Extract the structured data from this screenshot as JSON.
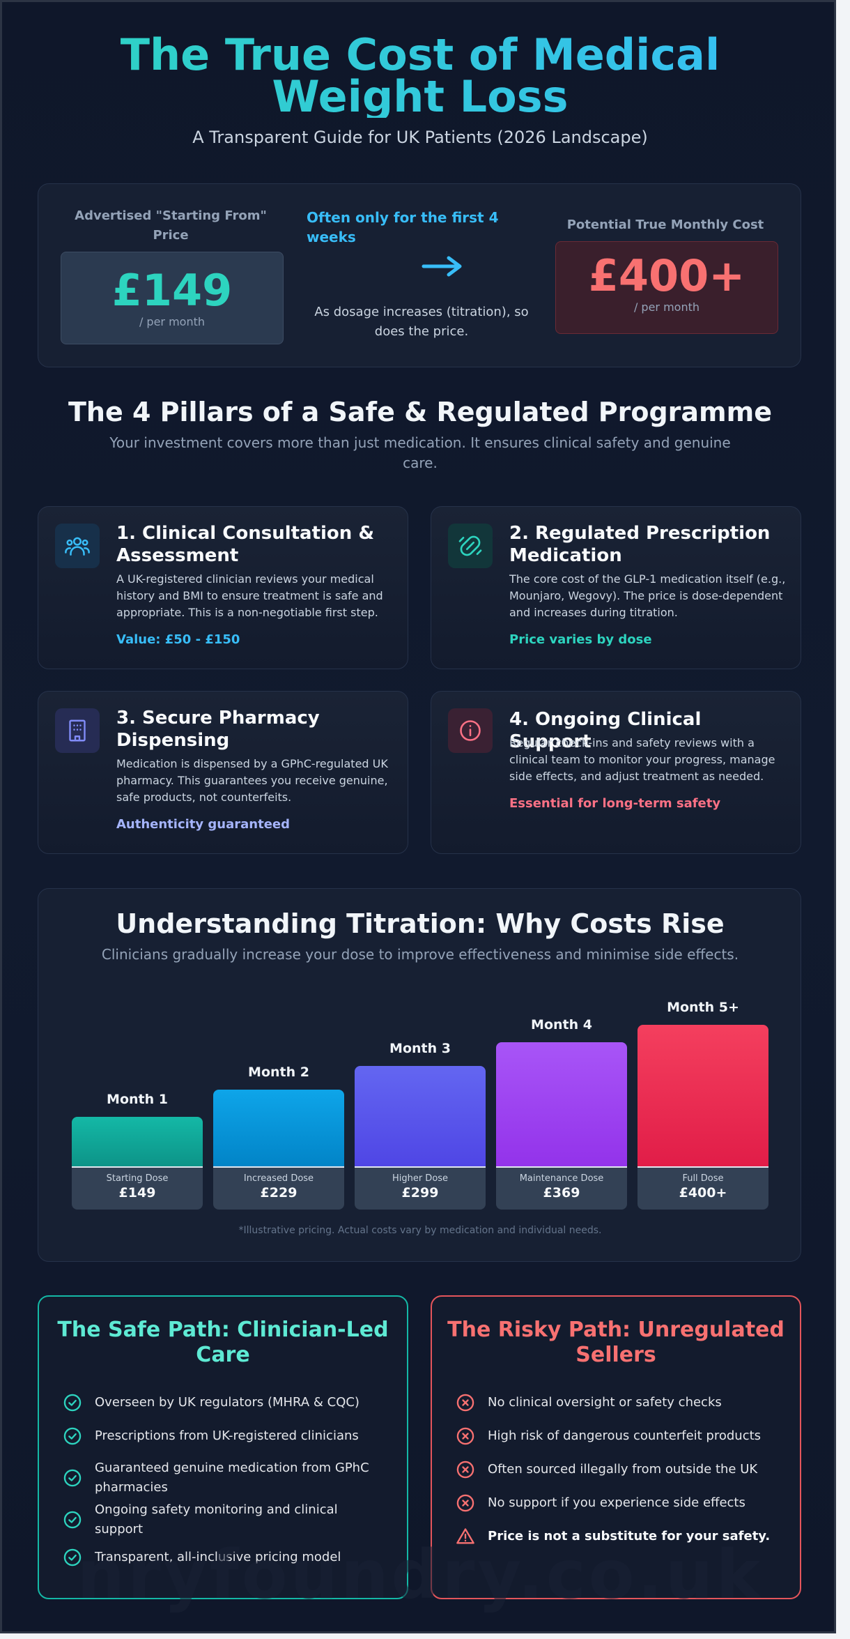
{
  "header": {
    "title": "The True Cost of Medical Weight Loss",
    "subtitle": "A Transparent Guide for UK Patients (2026 Landscape)"
  },
  "price_comparison": {
    "left_label": "Advertised \"Starting From\" Price",
    "left_price": "£149",
    "left_per": "/ per month",
    "middle_note": "Often only for the first 4 weeks",
    "arrow_icon": "arrow-right-icon",
    "middle_text": "As dosage increases (titration), so does the price.",
    "right_label": "Potential True Monthly Cost",
    "right_price": "£400+",
    "right_per": "/ per month"
  },
  "pillars": {
    "title": "The 4 Pillars of a Safe & Regulated Programme",
    "subtitle": "Your investment covers more than just medication. It ensures clinical safety and genuine care.",
    "items": [
      {
        "icon": "users-icon",
        "title": "1. Clinical Consultation & Assessment",
        "desc": "A UK-registered clinician reviews your medical history and BMI to ensure treatment is safe and appropriate. This is a non-negotiable first step.",
        "value": "Value: £50 - £150",
        "accent": "#38bdf8"
      },
      {
        "icon": "pill-icon",
        "title": "2. Regulated Prescription Medication",
        "desc": "The core cost of the GLP-1 medication itself (e.g., Mounjaro, Wegovy). The price is dose-dependent and increases during titration.",
        "value": "Price varies by dose",
        "accent": "#2dd4bf"
      },
      {
        "icon": "building-icon",
        "title": "3. Secure Pharmacy Dispensing",
        "desc": "Medication is dispensed by a GPhC-regulated UK pharmacy. This guarantees you receive genuine, safe products, not counterfeits.",
        "value": "Authenticity guaranteed",
        "accent": "#a5b4fc"
      },
      {
        "icon": "info-icon",
        "title": "4. Ongoing Clinical Support",
        "desc": "Regular check-ins and safety reviews with a clinical team to monitor your progress, manage side effects, and adjust treatment as needed.",
        "value": "Essential for long-term safety",
        "accent": "#fb7185"
      }
    ]
  },
  "titration": {
    "title": "Understanding Titration: Why Costs Rise",
    "subtitle": "Clinicians gradually increase your dose to improve effectiveness and minimise side effects.",
    "footnote": "*Illustrative pricing. Actual costs vary by medication and individual needs."
  },
  "chart_data": {
    "type": "bar",
    "categories": [
      "Month 1",
      "Month 2",
      "Month 3",
      "Month 4",
      "Month 5+"
    ],
    "dose_labels": [
      "Starting Dose",
      "Increased Dose",
      "Higher Dose",
      "Maintenance Dose",
      "Full Dose"
    ],
    "price_labels": [
      "£149",
      "£229",
      "£299",
      "£369",
      "£400+"
    ],
    "values": [
      149,
      229,
      299,
      369,
      420
    ],
    "ylim": [
      0,
      450
    ],
    "bar_colors": [
      [
        "#14b8a6",
        "#0d9488"
      ],
      [
        "#0ea5e9",
        "#0284c7"
      ],
      [
        "#6366f1",
        "#4f46e5"
      ],
      [
        "#a855f7",
        "#9333ea"
      ],
      [
        "#f43f5e",
        "#e11d48"
      ]
    ]
  },
  "safe_path": {
    "title": "The Safe Path: Clinician-Led Care",
    "items": [
      "Overseen by UK regulators (MHRA & CQC)",
      "Prescriptions from UK-registered clinicians",
      "Guaranteed genuine medication from GPhC pharmacies",
      "Ongoing safety monitoring and clinical support",
      "Transparent, all-inclusive pricing model"
    ]
  },
  "risky_path": {
    "title": "The Risky Path: Unregulated Sellers",
    "items": [
      "No clinical oversight or safety checks",
      "High risk of dangerous counterfeit products",
      "Often sourced illegally from outside the UK",
      "No support if you experience side effects"
    ],
    "warning": "Price is not a substitute for your safety."
  },
  "watermark": "nryfoundry.co.uk",
  "colors": {
    "teal": "#2dd4bf",
    "sky": "#38bdf8",
    "red": "#f87171",
    "background": "#0f172a"
  }
}
